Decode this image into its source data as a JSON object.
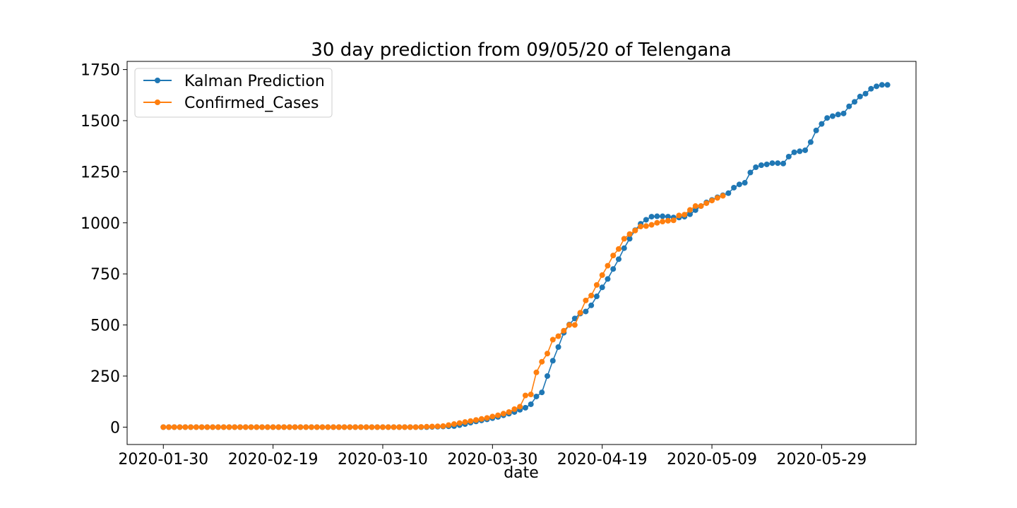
{
  "chart_data": {
    "type": "line",
    "title": "30 day prediction from 09/05/20 of Telengana",
    "xlabel": "date",
    "ylabel": "",
    "x_start": "2020-01-30",
    "x_tick_labels": [
      "2020-01-30",
      "2020-02-19",
      "2020-03-10",
      "2020-03-30",
      "2020-04-19",
      "2020-05-09",
      "2020-05-29"
    ],
    "xlim": [
      "2020-01-30",
      "2020-06-08"
    ],
    "ylim": [
      -85,
      1790
    ],
    "y_ticks": [
      0,
      250,
      500,
      750,
      1000,
      1250,
      1500,
      1750
    ],
    "y_tick_labels": [
      "0",
      "250",
      "500",
      "750",
      "1000",
      "1250",
      "1500",
      "1750"
    ],
    "legend_position": "top-left",
    "grid": false,
    "series": [
      {
        "name": "Kalman Prediction",
        "color": "#1f77b4",
        "values": [
          0,
          0,
          0,
          0,
          0,
          0,
          0,
          0,
          0,
          0,
          0,
          0,
          0,
          0,
          0,
          0,
          0,
          0,
          0,
          0,
          0,
          0,
          0,
          0,
          0,
          0,
          0,
          0,
          0,
          0,
          0,
          0,
          0,
          0,
          0,
          0,
          0,
          0,
          0,
          0,
          0,
          0,
          0,
          0,
          0,
          0,
          0,
          0,
          0,
          1,
          2,
          3,
          4,
          5,
          10,
          15,
          22,
          28,
          33,
          38,
          44,
          50,
          58,
          66,
          74,
          85,
          95,
          112,
          150,
          170,
          250,
          325,
          392,
          462,
          502,
          532,
          556,
          566,
          596,
          640,
          684,
          725,
          774,
          822,
          876,
          922,
          964,
          995,
          1015,
          1030,
          1032,
          1032,
          1030,
          1026,
          1026,
          1030,
          1042,
          1062,
          1082,
          1100,
          1112,
          1125,
          1135,
          1145,
          1172,
          1188,
          1196,
          1246,
          1272,
          1282,
          1286,
          1292,
          1292,
          1290,
          1324,
          1345,
          1350,
          1355,
          1395,
          1452,
          1484,
          1513,
          1522,
          1530,
          1535,
          1570,
          1592,
          1618,
          1632,
          1656,
          1668,
          1675,
          1675
        ]
      },
      {
        "name": "Confirmed_Cases",
        "color": "#ff7f0e",
        "values": [
          0,
          0,
          0,
          0,
          0,
          0,
          0,
          0,
          0,
          0,
          0,
          0,
          0,
          0,
          0,
          0,
          0,
          0,
          0,
          0,
          0,
          0,
          0,
          0,
          0,
          0,
          0,
          0,
          0,
          0,
          0,
          0,
          0,
          0,
          0,
          0,
          0,
          0,
          0,
          0,
          0,
          0,
          0,
          0,
          0,
          0,
          0,
          1,
          2,
          3,
          4,
          5,
          10,
          15,
          20,
          25,
          30,
          35,
          40,
          45,
          52,
          58,
          66,
          74,
          88,
          100,
          155,
          160,
          268,
          320,
          360,
          428,
          445,
          472,
          500,
          500,
          560,
          620,
          644,
          696,
          744,
          790,
          840,
          872,
          922,
          945,
          962,
          982,
          984,
          990,
          1000,
          1006,
          1010,
          1012,
          1036,
          1040,
          1063,
          1082,
          1082,
          1096,
          1109,
          1122,
          1132
        ]
      }
    ]
  }
}
